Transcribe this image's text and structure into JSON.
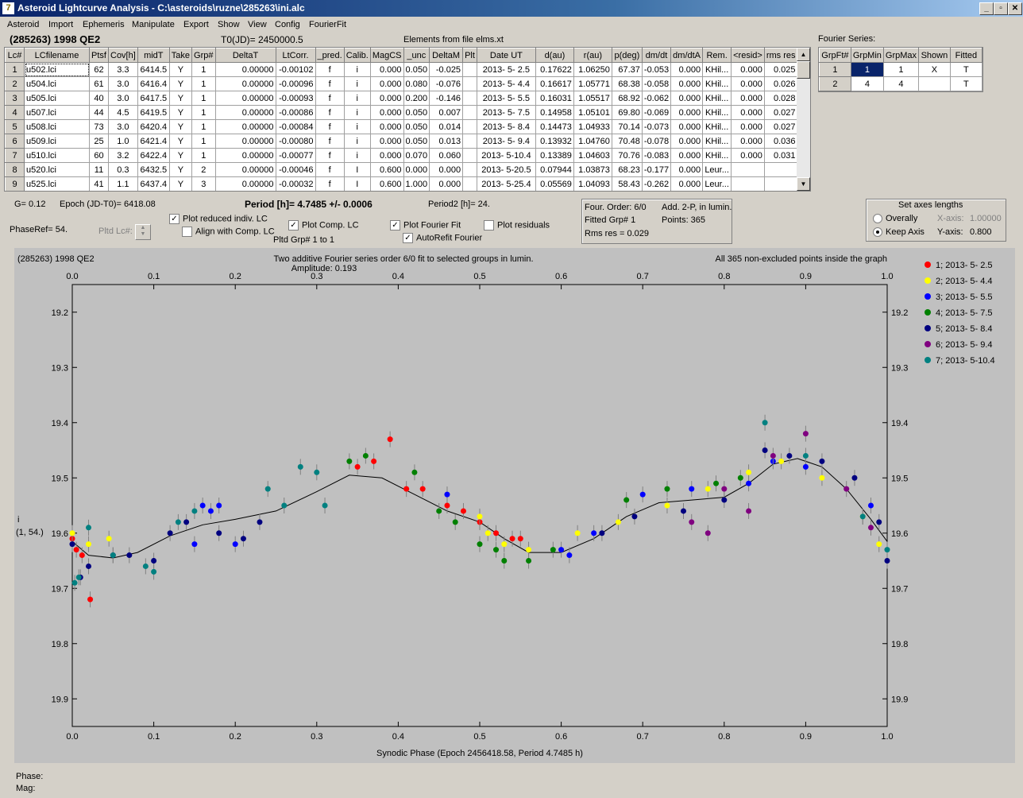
{
  "window": {
    "title": "Asteroid Lightcurve Analysis - C:\\asteroids\\ruzne\\285263\\ini.alc"
  },
  "menu": [
    "Asteroid",
    "Import",
    "Ephemeris",
    "Manipulate",
    "Export",
    "Show",
    "View",
    "Config",
    "FourierFit"
  ],
  "header": {
    "object": "(285263) 1998 QE2",
    "t0": "T0(JD)= 2450000.5",
    "elements": "Elements from file elms.xt",
    "fourier_title": "Fourier Series:"
  },
  "lc_table": {
    "columns": [
      "Lc#",
      "LCfilename",
      "Ptsf",
      "Cov[h]",
      "midT",
      "Take",
      "Grp#",
      "DeltaT",
      "LtCorr.",
      "_pred.",
      "Calib.",
      "MagCS",
      "_unc",
      "DeltaM",
      "Plt",
      "Date UT",
      "d(au)",
      "r(au)",
      "p(deg)",
      "dm/dt",
      "dm/dtA",
      "Rem.",
      "<resid>",
      "rms res"
    ],
    "rows": [
      [
        "1",
        "u502.lci",
        "62",
        "3.3",
        "6414.5",
        "Y",
        "1",
        "0.00000",
        "-0.00102",
        "f",
        "i",
        "0.000",
        "0.050",
        "-0.025",
        "",
        "2013- 5- 2.5",
        "0.17622",
        "1.06250",
        "67.37",
        "-0.053",
        "0.000",
        "KHil...",
        "0.000",
        "0.025"
      ],
      [
        "2",
        "u504.lci",
        "61",
        "3.0",
        "6416.4",
        "Y",
        "1",
        "0.00000",
        "-0.00096",
        "f",
        "i",
        "0.000",
        "0.080",
        "-0.076",
        "",
        "2013- 5- 4.4",
        "0.16617",
        "1.05771",
        "68.38",
        "-0.058",
        "0.000",
        "KHil...",
        "0.000",
        "0.026"
      ],
      [
        "3",
        "u505.lci",
        "40",
        "3.0",
        "6417.5",
        "Y",
        "1",
        "0.00000",
        "-0.00093",
        "f",
        "i",
        "0.000",
        "0.200",
        "-0.146",
        "",
        "2013- 5- 5.5",
        "0.16031",
        "1.05517",
        "68.92",
        "-0.062",
        "0.000",
        "KHil...",
        "0.000",
        "0.028"
      ],
      [
        "4",
        "u507.lci",
        "44",
        "4.5",
        "6419.5",
        "Y",
        "1",
        "0.00000",
        "-0.00086",
        "f",
        "i",
        "0.000",
        "0.050",
        "0.007",
        "",
        "2013- 5- 7.5",
        "0.14958",
        "1.05101",
        "69.80",
        "-0.069",
        "0.000",
        "KHil...",
        "0.000",
        "0.027"
      ],
      [
        "5",
        "u508.lci",
        "73",
        "3.0",
        "6420.4",
        "Y",
        "1",
        "0.00000",
        "-0.00084",
        "f",
        "i",
        "0.000",
        "0.050",
        "0.014",
        "",
        "2013- 5- 8.4",
        "0.14473",
        "1.04933",
        "70.14",
        "-0.073",
        "0.000",
        "KHil...",
        "0.000",
        "0.027"
      ],
      [
        "6",
        "u509.lci",
        "25",
        "1.0",
        "6421.4",
        "Y",
        "1",
        "0.00000",
        "-0.00080",
        "f",
        "i",
        "0.000",
        "0.050",
        "0.013",
        "",
        "2013- 5- 9.4",
        "0.13932",
        "1.04760",
        "70.48",
        "-0.078",
        "0.000",
        "KHil...",
        "0.000",
        "0.036"
      ],
      [
        "7",
        "u510.lci",
        "60",
        "3.2",
        "6422.4",
        "Y",
        "1",
        "0.00000",
        "-0.00077",
        "f",
        "i",
        "0.000",
        "0.070",
        "0.060",
        "",
        "2013- 5-10.4",
        "0.13389",
        "1.04603",
        "70.76",
        "-0.083",
        "0.000",
        "KHil...",
        "0.000",
        "0.031"
      ],
      [
        "8",
        "u520.lci",
        "11",
        "0.3",
        "6432.5",
        "Y",
        "2",
        "0.00000",
        "-0.00046",
        "f",
        "I",
        "0.600",
        "0.000",
        "0.000",
        "",
        "2013- 5-20.5",
        "0.07944",
        "1.03873",
        "68.23",
        "-0.177",
        "0.000",
        "Leur...",
        "",
        ""
      ],
      [
        "9",
        "u525.lci",
        "41",
        "1.1",
        "6437.4",
        "Y",
        "3",
        "0.00000",
        "-0.00032",
        "f",
        "I",
        "0.600",
        "1.000",
        "0.000",
        "",
        "2013- 5-25.4",
        "0.05569",
        "1.04093",
        "58.43",
        "-0.262",
        "0.000",
        "Leur...",
        "",
        ""
      ]
    ]
  },
  "fourier_table": {
    "columns": [
      "GrpFt#",
      "GrpMin",
      "GrpMax",
      "Shown",
      "Fitted"
    ],
    "rows": [
      [
        "1",
        "1",
        "1",
        "X",
        "T"
      ],
      [
        "2",
        "4",
        "4",
        "",
        "T"
      ]
    ]
  },
  "info": {
    "g": "G= 0.12",
    "epoch": "Epoch (JD-T0)= 6418.08",
    "phaseref": "PhaseRef= 54.",
    "pltd_lc": "Pltd Lc#:",
    "period": "Period [h]= 4.7485 +/- 0.0006",
    "period2": "Period2 [h]= 24.",
    "cb_plot_reduced": "Plot reduced indiv. LC",
    "cb_align": "Align with Comp. LC",
    "cb_plot_comp": "Plot Comp. LC",
    "pltd_grp": "Pltd Grp#  1  to  1",
    "cb_plot_fourier": "Plot Fourier Fit",
    "cb_autorefit": "AutoRefit Fourier",
    "cb_plot_resid": "Plot residuals",
    "four_order": "Four. Order:  6/0",
    "add": "Add. 2-P, in lumin.",
    "fitted_grp": "Fitted Grp# 1",
    "points": "Points: 365",
    "rms": "Rms res      = 0.029",
    "axes_title": "Set axes lengths",
    "overally": "Overally",
    "keep_axis": "Keep Axis",
    "xaxis_lbl": "X-axis:",
    "xaxis_val": "1.00000",
    "yaxis_lbl": "Y-axis:",
    "yaxis_val": "0.800"
  },
  "status": {
    "phase": "Phase:",
    "mag": "Mag:"
  },
  "chart_data": {
    "type": "scatter",
    "title_left": "(285263) 1998 QE2",
    "title": "Two additive Fourier series order 6/0 fit to selected groups in lumin.",
    "subtitle": "Amplitude: 0.193",
    "title_right": "All 365 non-excluded points inside the graph",
    "xlabel": "Synodic Phase (Epoch 2456418.58, Period 4.7485 h)",
    "ylabel": "i",
    "ylabel2": "(1, 54.)",
    "xlim": [
      0,
      1
    ],
    "ylim": [
      19.15,
      19.95
    ],
    "y_inverted": true,
    "x_ticks": [
      "0.0",
      "0.1",
      "0.2",
      "0.3",
      "0.4",
      "0.5",
      "0.6",
      "0.7",
      "0.8",
      "0.9",
      "1.0"
    ],
    "y_ticks": [
      "19.2",
      "19.3",
      "19.4",
      "19.5",
      "19.6",
      "19.7",
      "19.8",
      "19.9"
    ],
    "legend_position": "right",
    "series": [
      {
        "name": "1; 2013- 5- 2.5",
        "color": "#ff0000",
        "points": [
          [
            0.0,
            19.61
          ],
          [
            0.005,
            19.63
          ],
          [
            0.012,
            19.64
          ],
          [
            0.022,
            19.72
          ],
          [
            0.35,
            19.48
          ],
          [
            0.39,
            19.43
          ],
          [
            0.37,
            19.47
          ],
          [
            0.41,
            19.52
          ],
          [
            0.43,
            19.52
          ],
          [
            0.46,
            19.55
          ],
          [
            0.48,
            19.56
          ],
          [
            0.5,
            19.58
          ],
          [
            0.52,
            19.6
          ],
          [
            0.54,
            19.61
          ],
          [
            0.55,
            19.61
          ]
        ]
      },
      {
        "name": "2; 2013- 5- 4.4",
        "color": "#ffff00",
        "points": [
          [
            0.0,
            19.6
          ],
          [
            0.02,
            19.62
          ],
          [
            0.045,
            19.61
          ],
          [
            0.5,
            19.57
          ],
          [
            0.51,
            19.6
          ],
          [
            0.53,
            19.62
          ],
          [
            0.56,
            19.63
          ],
          [
            0.62,
            19.6
          ],
          [
            0.67,
            19.58
          ],
          [
            0.73,
            19.55
          ],
          [
            0.78,
            19.52
          ],
          [
            0.83,
            19.49
          ],
          [
            0.87,
            19.47
          ],
          [
            0.92,
            19.5
          ],
          [
            0.97,
            19.57
          ],
          [
            0.99,
            19.62
          ]
        ]
      },
      {
        "name": "3; 2013- 5- 5.5",
        "color": "#0000ff",
        "points": [
          [
            0.15,
            19.62
          ],
          [
            0.16,
            19.55
          ],
          [
            0.17,
            19.56
          ],
          [
            0.18,
            19.55
          ],
          [
            0.2,
            19.62
          ],
          [
            0.46,
            19.53
          ],
          [
            0.6,
            19.63
          ],
          [
            0.61,
            19.64
          ],
          [
            0.64,
            19.6
          ],
          [
            0.7,
            19.53
          ],
          [
            0.76,
            19.52
          ],
          [
            0.83,
            19.51
          ],
          [
            0.86,
            19.47
          ],
          [
            0.9,
            19.48
          ],
          [
            0.98,
            19.55
          ]
        ]
      },
      {
        "name": "4; 2013- 5- 7.5",
        "color": "#008000",
        "points": [
          [
            0.34,
            19.47
          ],
          [
            0.36,
            19.46
          ],
          [
            0.42,
            19.49
          ],
          [
            0.45,
            19.56
          ],
          [
            0.47,
            19.58
          ],
          [
            0.5,
            19.62
          ],
          [
            0.52,
            19.63
          ],
          [
            0.53,
            19.65
          ],
          [
            0.56,
            19.65
          ],
          [
            0.59,
            19.63
          ],
          [
            0.68,
            19.54
          ],
          [
            0.73,
            19.52
          ],
          [
            0.79,
            19.51
          ],
          [
            0.82,
            19.5
          ]
        ]
      },
      {
        "name": "5; 2013- 5- 8.4",
        "color": "#000080",
        "points": [
          [
            0.0,
            19.62
          ],
          [
            0.01,
            19.68
          ],
          [
            0.02,
            19.66
          ],
          [
            0.05,
            19.64
          ],
          [
            0.07,
            19.64
          ],
          [
            0.1,
            19.65
          ],
          [
            0.12,
            19.6
          ],
          [
            0.14,
            19.58
          ],
          [
            0.18,
            19.6
          ],
          [
            0.21,
            19.61
          ],
          [
            0.23,
            19.58
          ],
          [
            0.65,
            19.6
          ],
          [
            0.69,
            19.57
          ],
          [
            0.75,
            19.56
          ],
          [
            0.8,
            19.54
          ],
          [
            0.85,
            19.45
          ],
          [
            0.88,
            19.46
          ],
          [
            0.92,
            19.47
          ],
          [
            0.96,
            19.5
          ],
          [
            0.99,
            19.58
          ],
          [
            1.0,
            19.65
          ]
        ]
      },
      {
        "name": "6; 2013- 5- 9.4",
        "color": "#800080",
        "points": [
          [
            0.76,
            19.58
          ],
          [
            0.78,
            19.6
          ],
          [
            0.8,
            19.52
          ],
          [
            0.83,
            19.56
          ],
          [
            0.86,
            19.46
          ],
          [
            0.9,
            19.42
          ],
          [
            0.95,
            19.52
          ],
          [
            0.98,
            19.59
          ]
        ]
      },
      {
        "name": "7; 2013- 5-10.4",
        "color": "#008080",
        "points": [
          [
            0.003,
            19.69
          ],
          [
            0.008,
            19.68
          ],
          [
            0.02,
            19.59
          ],
          [
            0.05,
            19.64
          ],
          [
            0.09,
            19.66
          ],
          [
            0.1,
            19.67
          ],
          [
            0.13,
            19.58
          ],
          [
            0.15,
            19.56
          ],
          [
            0.24,
            19.52
          ],
          [
            0.26,
            19.55
          ],
          [
            0.28,
            19.48
          ],
          [
            0.3,
            19.49
          ],
          [
            0.31,
            19.55
          ],
          [
            0.85,
            19.4
          ],
          [
            0.9,
            19.46
          ],
          [
            0.97,
            19.57
          ],
          [
            1.0,
            19.63
          ]
        ]
      }
    ],
    "fit": [
      [
        0.0,
        19.615
      ],
      [
        0.02,
        19.64
      ],
      [
        0.05,
        19.645
      ],
      [
        0.08,
        19.635
      ],
      [
        0.12,
        19.605
      ],
      [
        0.16,
        19.585
      ],
      [
        0.2,
        19.575
      ],
      [
        0.25,
        19.56
      ],
      [
        0.3,
        19.525
      ],
      [
        0.34,
        19.495
      ],
      [
        0.38,
        19.5
      ],
      [
        0.42,
        19.53
      ],
      [
        0.46,
        19.56
      ],
      [
        0.5,
        19.58
      ],
      [
        0.53,
        19.61
      ],
      [
        0.56,
        19.635
      ],
      [
        0.6,
        19.635
      ],
      [
        0.64,
        19.61
      ],
      [
        0.68,
        19.57
      ],
      [
        0.72,
        19.545
      ],
      [
        0.76,
        19.54
      ],
      [
        0.8,
        19.535
      ],
      [
        0.83,
        19.51
      ],
      [
        0.86,
        19.475
      ],
      [
        0.89,
        19.465
      ],
      [
        0.92,
        19.48
      ],
      [
        0.95,
        19.52
      ],
      [
        0.98,
        19.575
      ],
      [
        1.0,
        19.615
      ]
    ]
  }
}
